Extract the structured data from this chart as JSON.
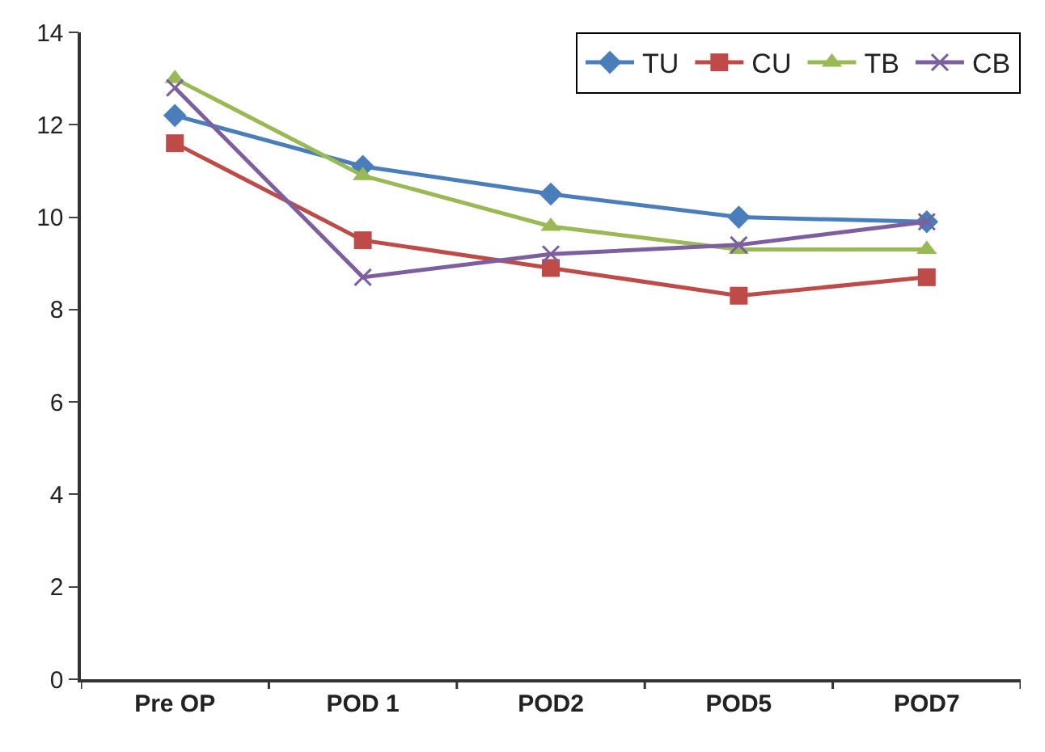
{
  "chart_data": {
    "type": "line",
    "categories": [
      "Pre OP",
      "POD 1",
      "POD2",
      "POD5",
      "POD7"
    ],
    "series": [
      {
        "name": "TU",
        "color": "#4a7ebb",
        "marker": "diamond",
        "values": [
          12.2,
          11.1,
          10.5,
          10.0,
          9.9
        ]
      },
      {
        "name": "CU",
        "color": "#be4b48",
        "marker": "square",
        "values": [
          11.6,
          9.5,
          8.9,
          8.3,
          8.7
        ]
      },
      {
        "name": "TB",
        "color": "#98b954",
        "marker": "triangle",
        "values": [
          13.0,
          10.9,
          9.8,
          9.3,
          9.3
        ]
      },
      {
        "name": "CB",
        "color": "#7d5fa0",
        "marker": "cross",
        "values": [
          12.8,
          8.7,
          9.2,
          9.4,
          9.9
        ]
      }
    ],
    "ylim": [
      0,
      14
    ],
    "yticks": [
      0,
      2,
      4,
      6,
      8,
      10,
      12,
      14
    ],
    "legend": "top right",
    "line_style": "solid"
  }
}
